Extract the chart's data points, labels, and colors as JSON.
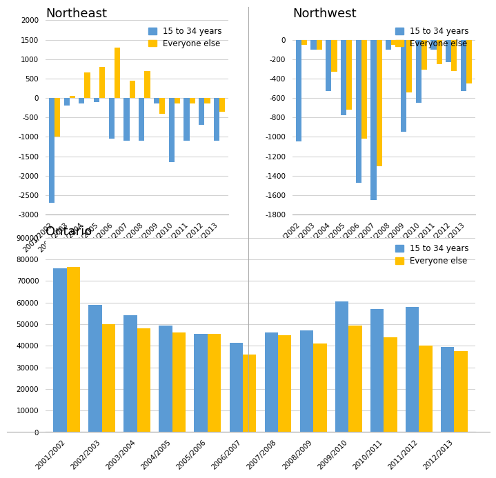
{
  "years": [
    "2001/2002",
    "2002/2003",
    "2003/2004",
    "2004/2005",
    "2005/2006",
    "2006/2007",
    "2007/2008",
    "2008/2009",
    "2009/2010",
    "2010/2011",
    "2011/2012",
    "2012/2013"
  ],
  "northeast": {
    "youth": [
      -2700,
      -200,
      -150,
      -100,
      -1050,
      -1100,
      -1100,
      -150,
      -1650,
      -1100,
      -700,
      -1100
    ],
    "other": [
      -1000,
      50,
      650,
      800,
      1300,
      450,
      700,
      -400,
      -150,
      -150,
      -150,
      -350
    ]
  },
  "northwest": {
    "youth": [
      -1050,
      -100,
      -530,
      -780,
      -1470,
      -1650,
      -100,
      -950,
      -650,
      -100,
      -230,
      -530
    ],
    "other": [
      -50,
      -100,
      -330,
      -720,
      -1020,
      -1300,
      -50,
      -540,
      -310,
      -250,
      -320,
      -450
    ]
  },
  "ontario": {
    "youth": [
      76000,
      59000,
      54000,
      49500,
      45500,
      41500,
      46000,
      47000,
      60500,
      57000,
      58000,
      39500
    ],
    "other": [
      76500,
      50000,
      48000,
      46000,
      45500,
      36000,
      45000,
      41000,
      49500,
      44000,
      40000,
      37500
    ]
  },
  "blue": "#5b9bd5",
  "orange": "#ffc000",
  "background": "#ffffff",
  "grid_color": "#d3d3d3",
  "title_fontsize": 13,
  "tick_fontsize": 7.5,
  "legend_fontsize": 8.5,
  "ne_ylim": [
    -3000,
    2000
  ],
  "ne_yticks": [
    -3000,
    -2500,
    -2000,
    -1500,
    -1000,
    -500,
    0,
    500,
    1000,
    1500,
    2000
  ],
  "nw_ylim": [
    -1800,
    200
  ],
  "nw_yticks": [
    -1800,
    -1600,
    -1400,
    -1200,
    -1000,
    -800,
    -600,
    -400,
    -200,
    0
  ],
  "on_ylim": [
    0,
    90000
  ],
  "on_yticks": [
    0,
    10000,
    20000,
    30000,
    40000,
    50000,
    60000,
    70000,
    80000,
    90000
  ]
}
